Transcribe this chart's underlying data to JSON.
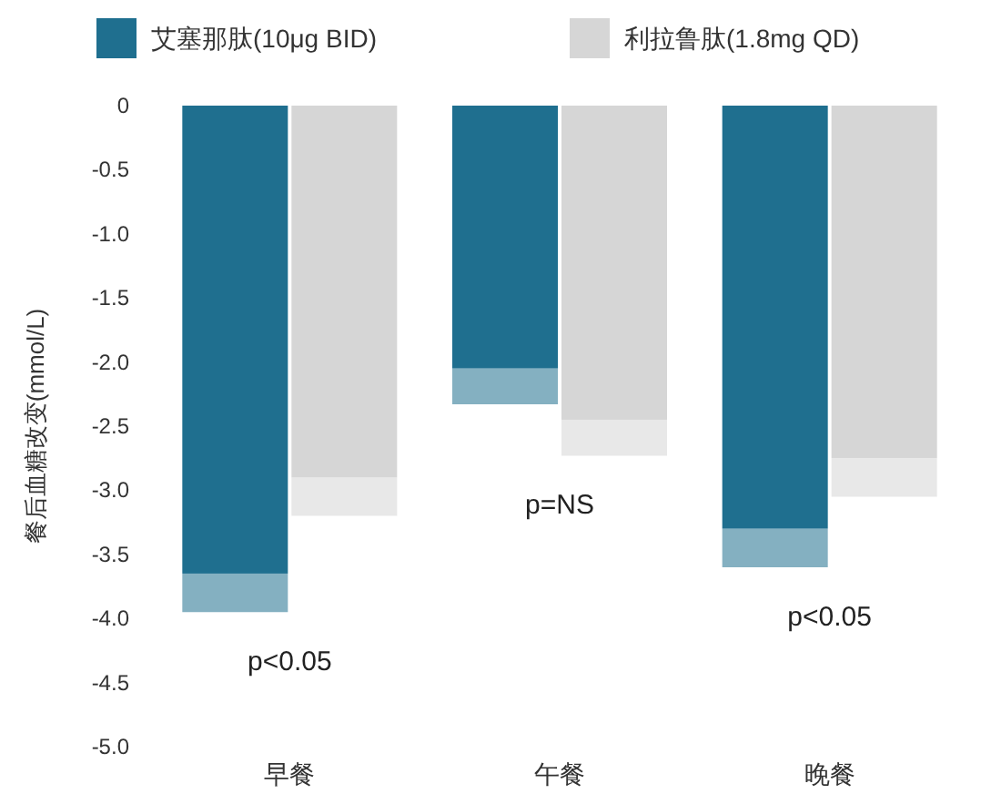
{
  "chart_data": {
    "type": "bar",
    "ylabel": "餐后血糖改变(mmol/L)",
    "categories": [
      "早餐",
      "午餐",
      "晚餐"
    ],
    "series": [
      {
        "name": "艾塞那肽(10μg BID)",
        "color": "#1f6f8f",
        "values": [
          -3.65,
          -2.05,
          -3.3
        ],
        "errors": [
          [
            -3.95,
            -3.65
          ],
          [
            -2.33,
            -2.05
          ],
          [
            -3.6,
            -3.3
          ]
        ]
      },
      {
        "name": "利拉鲁肽(1.8mg QD)",
        "color": "#d6d6d6",
        "values": [
          -2.9,
          -2.45,
          -2.75
        ],
        "errors": [
          [
            -3.2,
            -2.9
          ],
          [
            -2.73,
            -2.45
          ],
          [
            -3.05,
            -2.75
          ]
        ]
      }
    ],
    "ylim": [
      -5,
      0
    ],
    "yticks": [
      0,
      -0.5,
      {
        "value": -1,
        "label": "-1.0"
      },
      -1.5,
      {
        "value": -2,
        "label": "-2.0"
      },
      -2.5,
      {
        "value": -3,
        "label": "-3.0"
      },
      -3.5,
      {
        "value": -4,
        "label": "-4.0"
      },
      -4.5,
      {
        "value": -5,
        "label": "-5.0"
      }
    ],
    "annotations": [
      "p<0.05",
      "p=NS",
      "p<0.05"
    ],
    "legend": "top",
    "grid": false
  }
}
